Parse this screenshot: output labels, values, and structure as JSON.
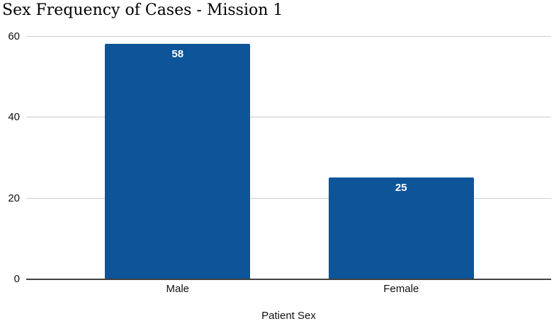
{
  "chart_data": {
    "type": "bar",
    "title": "Sex Frequency of Cases - Mission 1",
    "xlabel": "Patient Sex",
    "ylabel": "",
    "categories": [
      "Male",
      "Female"
    ],
    "values": [
      58,
      25
    ],
    "value_labels": [
      "58",
      "25"
    ],
    "ytick_labels": [
      "0",
      "20",
      "40",
      "60"
    ],
    "yticks": [
      0,
      20,
      40,
      60
    ],
    "ylim": [
      0,
      60
    ],
    "grid": true,
    "legend_position": "none",
    "colors": {
      "bar": "#0D5498",
      "value_label": "#FFFFFF",
      "gridline": "#CCCCCC",
      "axis_line": "#424242",
      "axis_text": "#111111",
      "title_text": "#000000",
      "background": "#FFFFFF"
    }
  }
}
